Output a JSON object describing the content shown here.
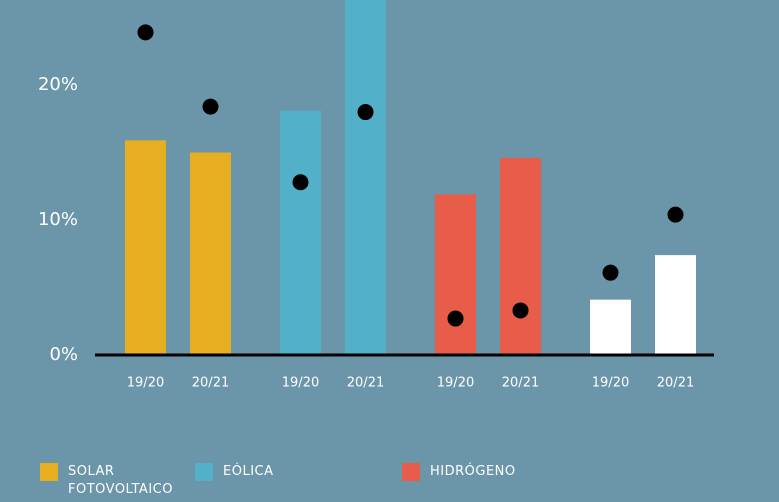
{
  "chart_data": {
    "type": "bar",
    "ylim": [
      0,
      26.3
    ],
    "yticks": [
      {
        "value": 0,
        "label": "0%"
      },
      {
        "value": 10,
        "label": "10%"
      },
      {
        "value": 20,
        "label": "20%"
      }
    ],
    "groups": [
      {
        "name": "SOLAR FOTOVOLTAICO",
        "color": "#e8ae22",
        "categories": [
          "19/20",
          "20/21"
        ],
        "values": [
          15.9,
          15.0
        ],
        "points": [
          23.9,
          18.4
        ]
      },
      {
        "name": "EÓLICA",
        "color": "#52b0c9",
        "categories": [
          "19/20",
          "20/21"
        ],
        "values": [
          18.1,
          26.5
        ],
        "points": [
          12.8,
          18.0
        ]
      },
      {
        "name": "HIDRÓGENO",
        "color": "#e85c4a",
        "categories": [
          "19/20",
          "20/21"
        ],
        "values": [
          11.9,
          14.6
        ],
        "points": [
          2.7,
          3.3
        ]
      },
      {
        "color": "#ffffff",
        "categories": [
          "19/20",
          "20/21"
        ],
        "values": [
          4.1,
          7.4
        ],
        "points": [
          6.1,
          10.4
        ]
      }
    ],
    "point_color": "#000000"
  }
}
